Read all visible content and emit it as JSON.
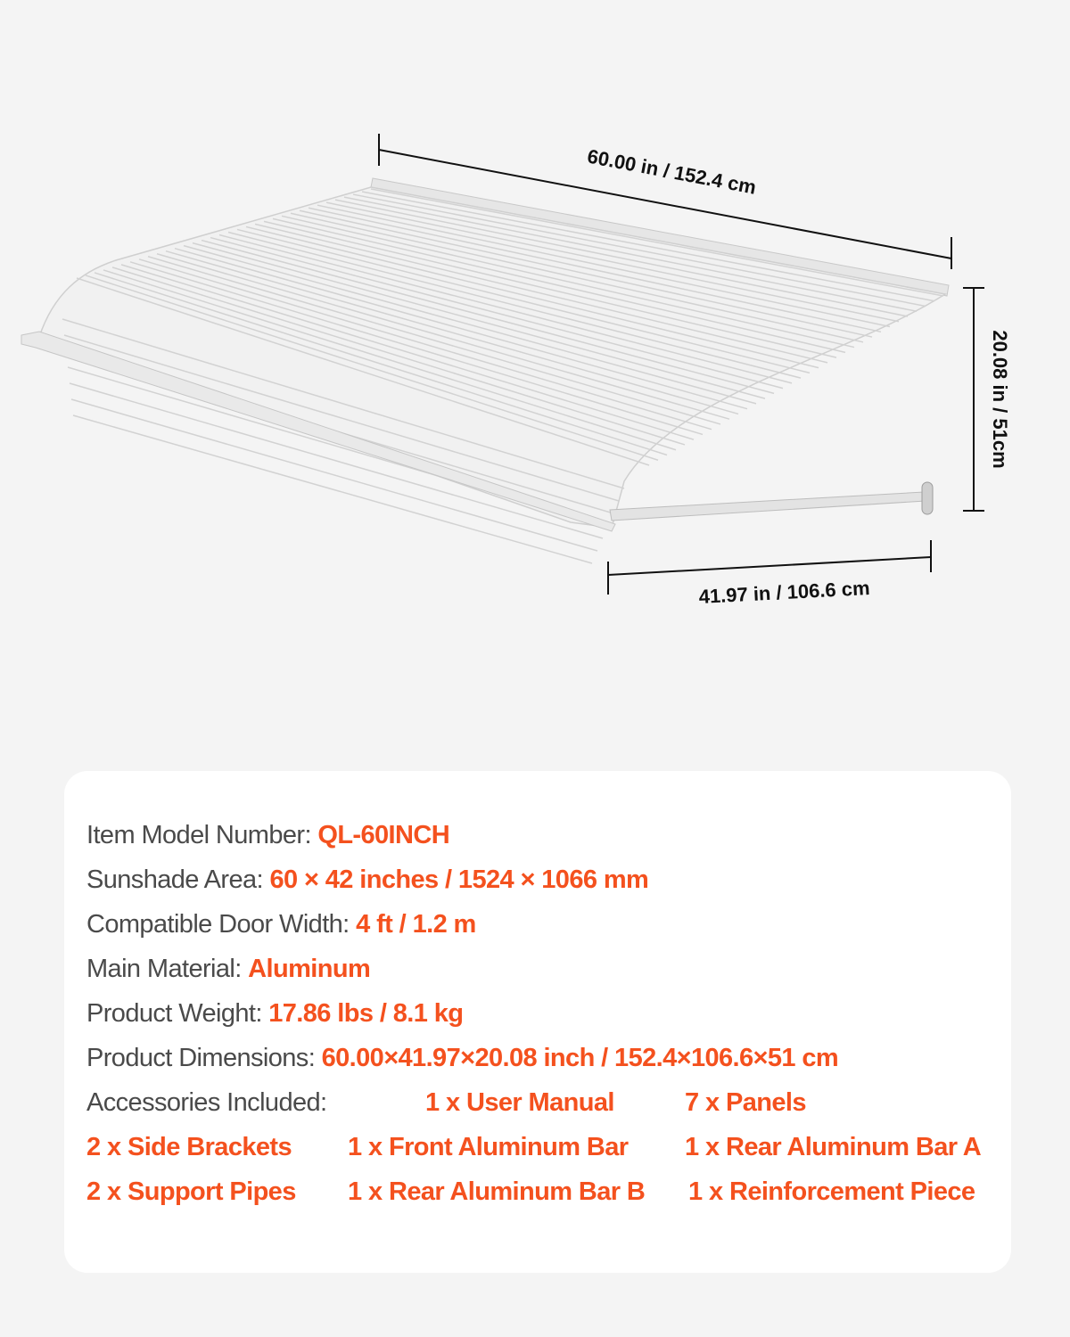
{
  "dimensions": {
    "width": "60.00 in / 152.4 cm",
    "height": "20.08 in / 51cm",
    "depth": "41.97 in / 106.6 cm"
  },
  "specs": [
    {
      "label": "Item Model Number: ",
      "value": "QL-60INCH"
    },
    {
      "label": "Sunshade Area: ",
      "value": "60 × 42 inches / 1524 × 1066 mm"
    },
    {
      "label": "Compatible Door Width: ",
      "value": "4 ft / 1.2 m"
    },
    {
      "label": "Main Material: ",
      "value": "Aluminum"
    },
    {
      "label": "Product Weight: ",
      "value": "17.86 lbs / 8.1 kg"
    },
    {
      "label": "Product Dimensions: ",
      "value": "60.00×41.97×20.08 inch / 152.4×106.6×51 cm"
    }
  ],
  "accessories": {
    "label": "Accessories Included:",
    "items": [
      "1 x User Manual",
      "7 x Panels",
      "2 x Side Brackets",
      "1 x Front Aluminum Bar",
      "1 x Rear Aluminum Bar A",
      "2 x Support Pipes",
      "1 x Rear Aluminum Bar B",
      "1 x Reinforcement Piece"
    ]
  },
  "colors": {
    "accent": "#f4511e",
    "label": "#4a4a4a",
    "background": "#f4f4f4",
    "card": "#ffffff"
  }
}
